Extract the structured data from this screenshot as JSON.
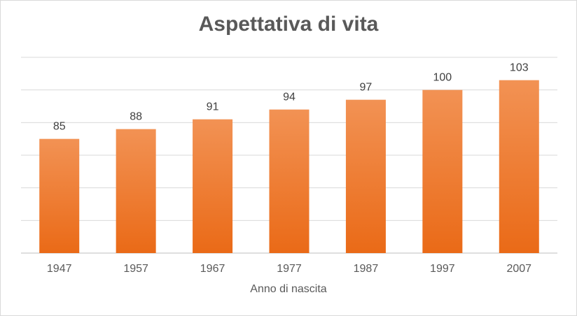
{
  "chart_data": {
    "type": "bar",
    "title": "Aspettativa di vita",
    "xlabel": "Anno di nascita",
    "ylabel": "",
    "categories": [
      "1947",
      "1957",
      "1967",
      "1977",
      "1987",
      "1997",
      "2007"
    ],
    "values": [
      85,
      88,
      91,
      94,
      97,
      100,
      103
    ],
    "data_labels": [
      "85",
      "88",
      "91",
      "94",
      "97",
      "100",
      "103"
    ],
    "ylim": [
      50,
      110
    ],
    "grid": true,
    "legend": "none",
    "colors": {
      "bar_top": "#f29254",
      "bar_bottom": "#ea6a17",
      "grid": "#d9d9d9",
      "text": "#595959"
    }
  }
}
